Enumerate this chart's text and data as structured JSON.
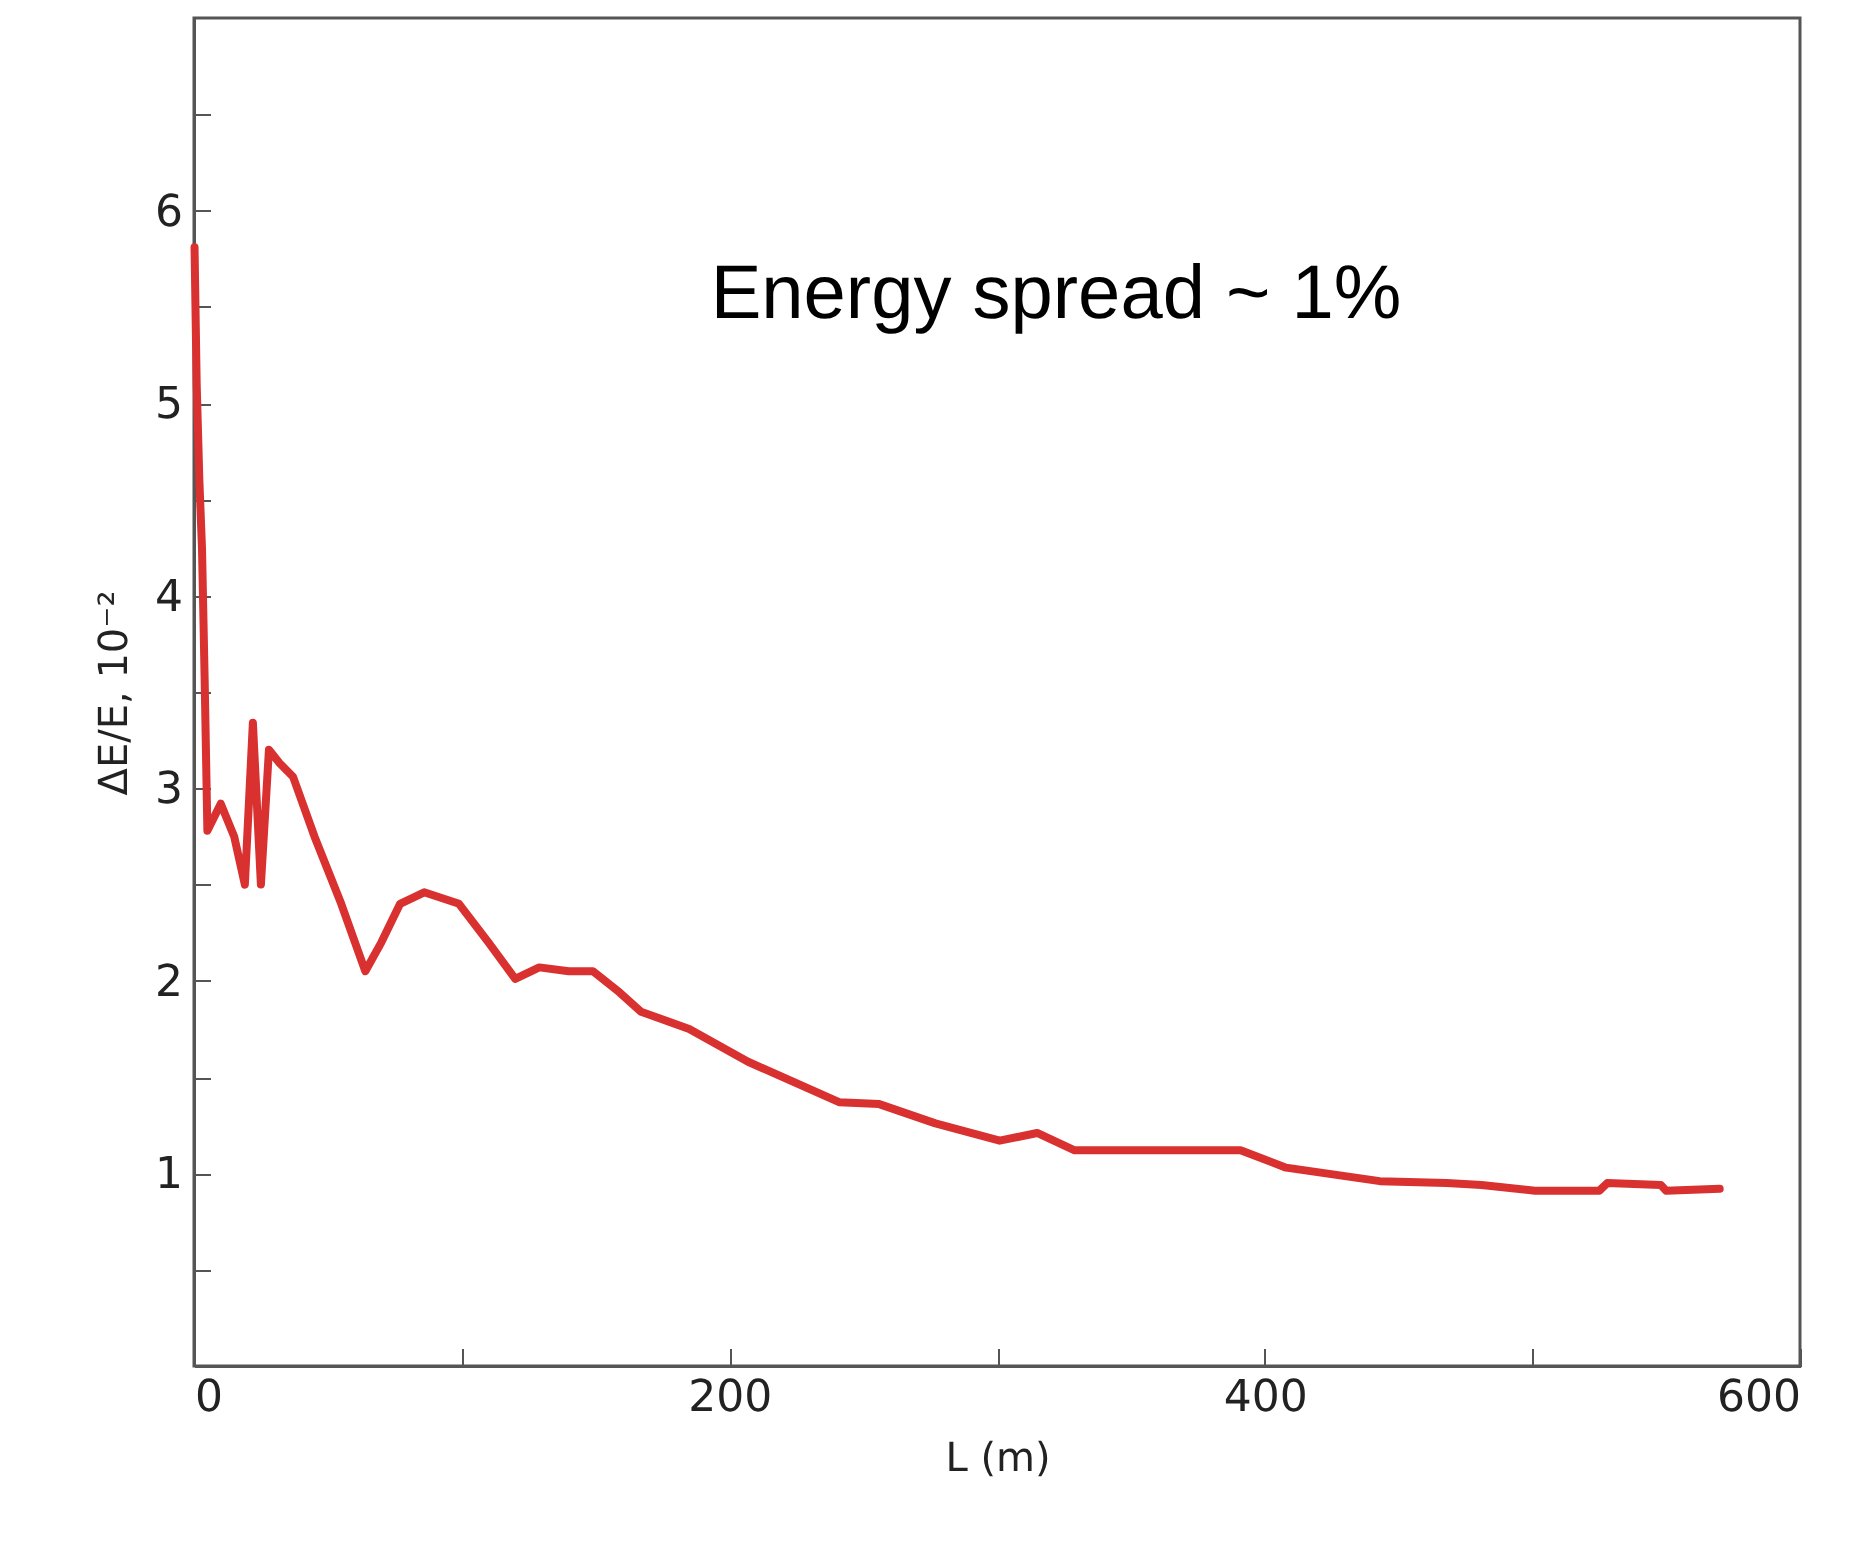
{
  "chart_data": {
    "type": "line",
    "xlabel": "L (m)",
    "ylabel": "ΔE/E, 10⁻²",
    "annotations": [
      "Energy spread ~ 1%"
    ],
    "x": [
      0.2,
      1,
      2,
      3,
      4,
      5,
      10,
      15,
      19,
      22,
      25,
      28,
      32,
      37,
      45,
      55,
      64,
      70,
      77,
      86,
      99,
      110,
      120,
      129,
      140,
      149,
      159,
      167,
      185,
      207,
      241,
      256,
      277,
      301,
      315,
      329,
      356,
      391,
      408,
      443,
      468,
      481,
      501,
      525,
      528,
      548,
      550,
      570
    ],
    "series": [
      {
        "color": "#d93030",
        "values": [
          5.81,
          5.1,
          4.6,
          4.24,
          3.55,
          2.78,
          2.92,
          2.75,
          2.5,
          3.34,
          2.5,
          3.2,
          3.13,
          3.06,
          2.75,
          2.4,
          2.05,
          2.2,
          2.4,
          2.46,
          2.4,
          2.2,
          2.01,
          2.07,
          2.05,
          2.05,
          1.94,
          1.84,
          1.75,
          1.58,
          1.37,
          1.36,
          1.26,
          1.17,
          1.21,
          1.12,
          1.12,
          1.12,
          1.03,
          0.96,
          0.95,
          0.94,
          0.91,
          0.91,
          0.95,
          0.94,
          0.91,
          0.92
        ]
      }
    ],
    "xlim": [
      0,
      600
    ],
    "ylim": [
      0,
      7
    ],
    "xticks": [
      0,
      {
        "value": 100,
        "label": null
      },
      200,
      {
        "value": 300,
        "label": null
      },
      400,
      {
        "value": 500,
        "label": null
      },
      600
    ],
    "yticks": [
      {
        "value": 0.5,
        "label": null
      },
      1,
      {
        "value": 1.5,
        "label": null
      },
      2,
      {
        "value": 2.5,
        "label": null
      },
      3,
      {
        "value": 3.5,
        "label": null
      },
      4,
      {
        "value": 4.5,
        "label": null
      },
      5,
      {
        "value": 5.5,
        "label": null
      },
      6,
      {
        "value": 6.5,
        "label": null
      }
    ],
    "grid": false,
    "marker": "none",
    "line_style": "solid"
  }
}
